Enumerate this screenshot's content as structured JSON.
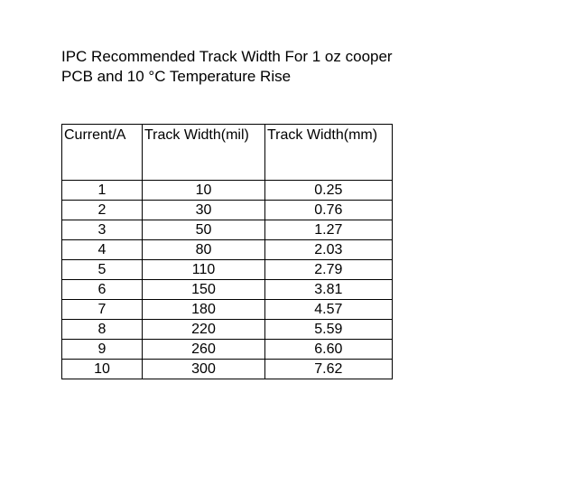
{
  "title": {
    "line1": "IPC Recommended Track Width For 1 oz cooper",
    "line2": "PCB and 10 °C Temperature Rise"
  },
  "table": {
    "headers": [
      "Current/A",
      "Track Width(mil)",
      "Track Width(mm)"
    ],
    "rows": [
      [
        "1",
        "10",
        "0.25"
      ],
      [
        "2",
        "30",
        "0.76"
      ],
      [
        "3",
        "50",
        "1.27"
      ],
      [
        "4",
        "80",
        "2.03"
      ],
      [
        "5",
        "110",
        "2.79"
      ],
      [
        "6",
        "150",
        "3.81"
      ],
      [
        "7",
        "180",
        "4.57"
      ],
      [
        "8",
        "220",
        "5.59"
      ],
      [
        "9",
        "260",
        "6.60"
      ],
      [
        "10",
        "300",
        "7.62"
      ]
    ]
  }
}
